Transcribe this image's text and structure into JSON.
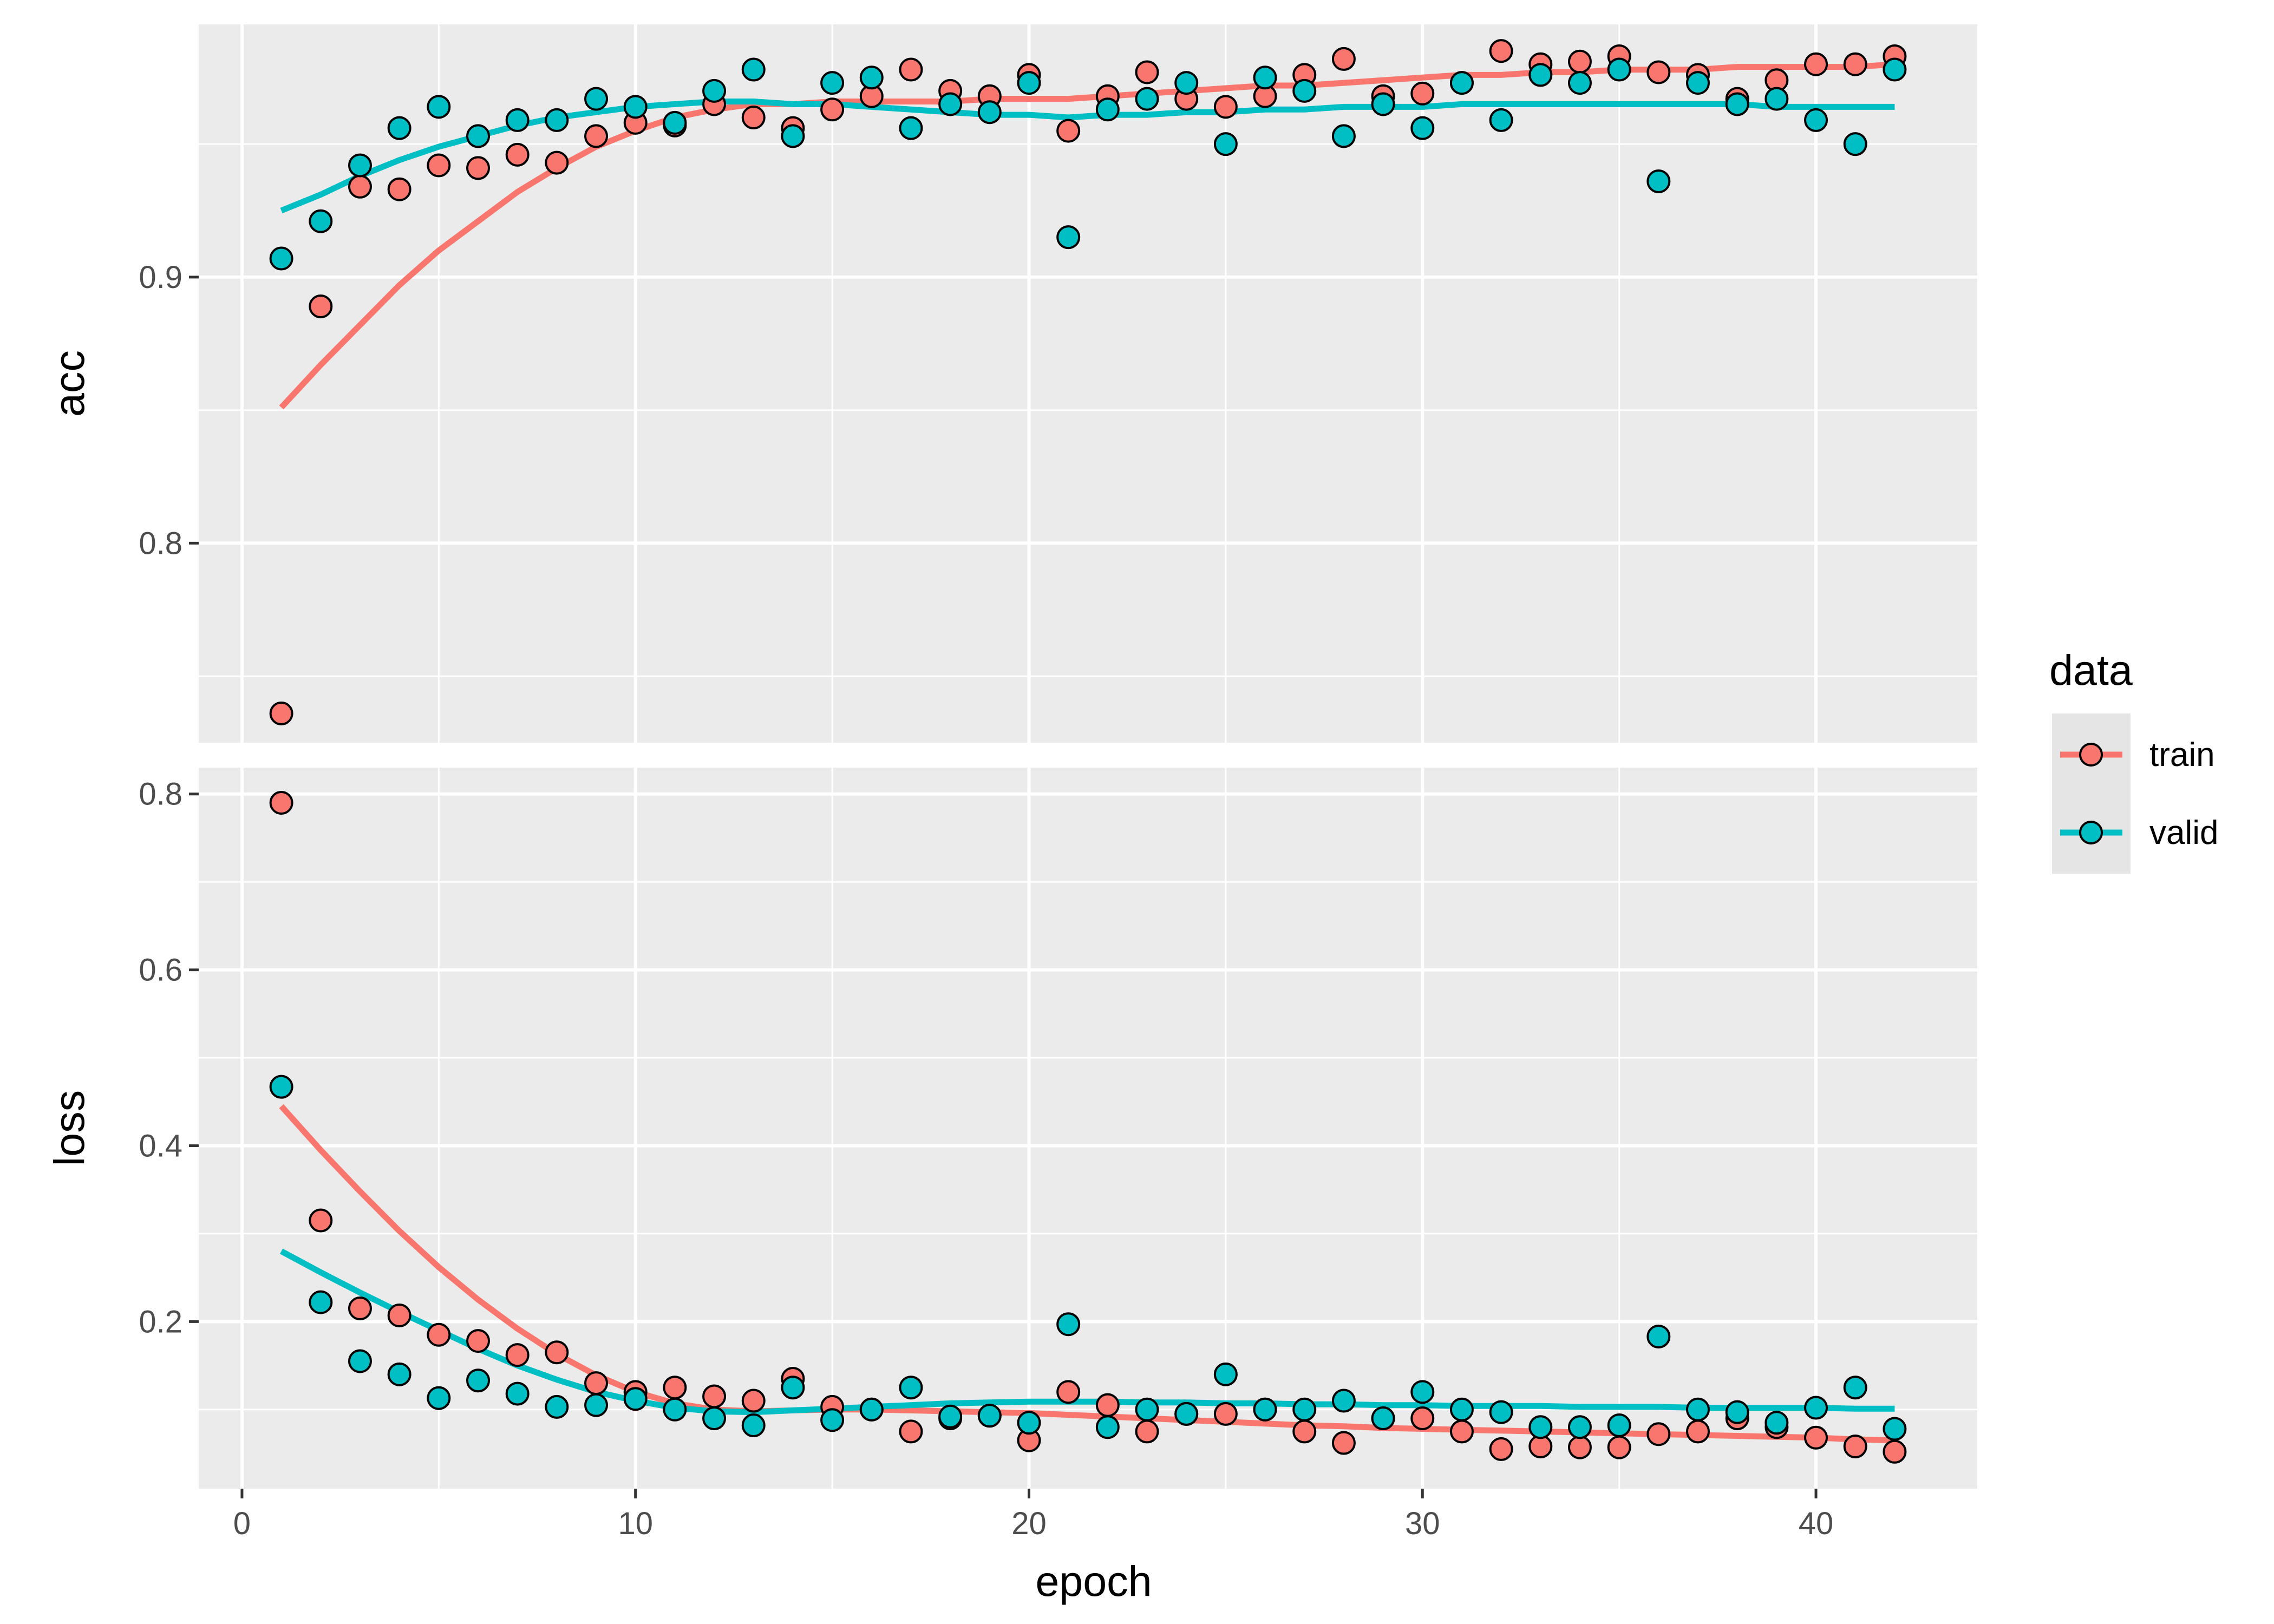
{
  "chart_data": {
    "type": "scatter",
    "xlabel": "epoch",
    "x_ticks": [
      0,
      10,
      20,
      30,
      40
    ],
    "xlim": [
      -1.1,
      44.1
    ],
    "grid": true,
    "legend": {
      "title": "data",
      "position": "right",
      "entries": [
        {
          "name": "train",
          "color": "#F8766D"
        },
        {
          "name": "valid",
          "color": "#00BFC4"
        }
      ]
    },
    "panels": [
      {
        "strip": "acc",
        "ylim": [
          0.725,
          0.995
        ],
        "y_ticks": [
          0.8,
          0.9
        ],
        "y_tick_labels": [
          "0.8",
          "0.9"
        ],
        "series": [
          {
            "name": "train",
            "x": [
              1,
              2,
              3,
              4,
              5,
              6,
              7,
              8,
              9,
              10,
              11,
              12,
              13,
              14,
              15,
              16,
              17,
              18,
              19,
              20,
              21,
              22,
              23,
              24,
              25,
              26,
              27,
              28,
              29,
              30,
              31,
              32,
              33,
              34,
              35,
              36,
              37,
              38,
              39,
              40,
              41,
              42
            ],
            "y": [
              0.736,
              0.889,
              0.934,
              0.933,
              0.942,
              0.941,
              0.946,
              0.943,
              0.953,
              0.958,
              0.957,
              0.965,
              0.96,
              0.956,
              0.963,
              0.968,
              0.978,
              0.97,
              0.968,
              0.976,
              0.955,
              0.968,
              0.977,
              0.967,
              0.964,
              0.968,
              0.976,
              0.982,
              0.968,
              0.969,
              0.973,
              0.985,
              0.98,
              0.981,
              0.983,
              0.977,
              0.976,
              0.967,
              0.974,
              0.98,
              0.98,
              0.983
            ],
            "smooth": [
              0.851,
              0.867,
              0.882,
              0.897,
              0.91,
              0.921,
              0.932,
              0.941,
              0.949,
              0.955,
              0.96,
              0.963,
              0.965,
              0.965,
              0.966,
              0.966,
              0.966,
              0.966,
              0.967,
              0.967,
              0.967,
              0.968,
              0.969,
              0.97,
              0.971,
              0.972,
              0.972,
              0.973,
              0.974,
              0.975,
              0.976,
              0.976,
              0.977,
              0.977,
              0.978,
              0.978,
              0.978,
              0.979,
              0.979,
              0.979,
              0.979,
              0.98
            ]
          },
          {
            "name": "valid",
            "x": [
              1,
              2,
              3,
              4,
              5,
              6,
              7,
              8,
              9,
              10,
              11,
              12,
              13,
              14,
              15,
              16,
              17,
              18,
              19,
              20,
              21,
              22,
              23,
              24,
              25,
              26,
              27,
              28,
              29,
              30,
              31,
              32,
              33,
              34,
              35,
              36,
              37,
              38,
              39,
              40,
              41,
              42
            ],
            "y": [
              0.907,
              0.921,
              0.942,
              0.956,
              0.964,
              0.953,
              0.959,
              0.959,
              0.967,
              0.964,
              0.958,
              0.97,
              0.978,
              0.953,
              0.973,
              0.975,
              0.956,
              0.965,
              0.962,
              0.973,
              0.915,
              0.963,
              0.967,
              0.973,
              0.95,
              0.975,
              0.97,
              0.953,
              0.965,
              0.956,
              0.973,
              0.959,
              0.976,
              0.973,
              0.978,
              0.936,
              0.973,
              0.965,
              0.967,
              0.959,
              0.95,
              0.978
            ],
            "smooth": [
              0.925,
              0.931,
              0.938,
              0.944,
              0.949,
              0.953,
              0.957,
              0.96,
              0.962,
              0.964,
              0.965,
              0.966,
              0.966,
              0.965,
              0.965,
              0.964,
              0.963,
              0.962,
              0.961,
              0.961,
              0.96,
              0.961,
              0.961,
              0.962,
              0.962,
              0.963,
              0.963,
              0.964,
              0.964,
              0.964,
              0.965,
              0.965,
              0.965,
              0.965,
              0.965,
              0.965,
              0.965,
              0.965,
              0.964,
              0.964,
              0.964,
              0.964
            ]
          }
        ]
      },
      {
        "strip": "loss",
        "ylim": [
          0.01,
          0.83
        ],
        "y_ticks": [
          0.2,
          0.4,
          0.6,
          0.8
        ],
        "y_tick_labels": [
          "0.2",
          "0.4",
          "0.6",
          "0.8"
        ],
        "series": [
          {
            "name": "train",
            "x": [
              1,
              2,
              3,
              4,
              5,
              6,
              7,
              8,
              9,
              10,
              11,
              12,
              13,
              14,
              15,
              16,
              17,
              18,
              19,
              20,
              21,
              22,
              23,
              24,
              25,
              26,
              27,
              28,
              29,
              30,
              31,
              32,
              33,
              34,
              35,
              36,
              37,
              38,
              39,
              40,
              41,
              42
            ],
            "y": [
              0.79,
              0.315,
              0.215,
              0.207,
              0.185,
              0.178,
              0.162,
              0.165,
              0.13,
              0.12,
              0.125,
              0.115,
              0.11,
              0.135,
              0.103,
              0.1,
              0.075,
              0.09,
              0.093,
              0.065,
              0.12,
              0.105,
              0.075,
              0.095,
              0.095,
              0.1,
              0.075,
              0.062,
              0.09,
              0.09,
              0.075,
              0.055,
              0.058,
              0.057,
              0.057,
              0.072,
              0.075,
              0.09,
              0.08,
              0.068,
              0.058,
              0.052
            ],
            "smooth": [
              0.445,
              0.395,
              0.348,
              0.303,
              0.262,
              0.225,
              0.192,
              0.163,
              0.139,
              0.12,
              0.107,
              0.1,
              0.098,
              0.099,
              0.1,
              0.1,
              0.099,
              0.098,
              0.097,
              0.096,
              0.094,
              0.092,
              0.09,
              0.088,
              0.086,
              0.084,
              0.082,
              0.081,
              0.079,
              0.078,
              0.077,
              0.076,
              0.075,
              0.074,
              0.073,
              0.072,
              0.071,
              0.07,
              0.069,
              0.068,
              0.066,
              0.065
            ]
          },
          {
            "name": "valid",
            "x": [
              1,
              2,
              3,
              4,
              5,
              6,
              7,
              8,
              9,
              10,
              11,
              12,
              13,
              14,
              15,
              16,
              17,
              18,
              19,
              20,
              21,
              22,
              23,
              24,
              25,
              26,
              27,
              28,
              29,
              30,
              31,
              32,
              33,
              34,
              35,
              36,
              37,
              38,
              39,
              40,
              41,
              42
            ],
            "y": [
              0.467,
              0.222,
              0.155,
              0.14,
              0.113,
              0.133,
              0.118,
              0.103,
              0.105,
              0.112,
              0.1,
              0.09,
              0.082,
              0.125,
              0.088,
              0.1,
              0.125,
              0.092,
              0.093,
              0.085,
              0.197,
              0.08,
              0.1,
              0.095,
              0.14,
              0.1,
              0.1,
              0.11,
              0.09,
              0.12,
              0.1,
              0.097,
              0.08,
              0.08,
              0.082,
              0.183,
              0.1,
              0.097,
              0.085,
              0.102,
              0.125,
              0.078
            ],
            "smooth": [
              0.28,
              0.256,
              0.233,
              0.211,
              0.19,
              0.169,
              0.15,
              0.134,
              0.12,
              0.11,
              0.102,
              0.098,
              0.097,
              0.099,
              0.101,
              0.103,
              0.105,
              0.107,
              0.108,
              0.109,
              0.109,
              0.109,
              0.108,
              0.108,
              0.107,
              0.107,
              0.106,
              0.106,
              0.105,
              0.105,
              0.104,
              0.104,
              0.104,
              0.103,
              0.103,
              0.103,
              0.102,
              0.102,
              0.102,
              0.102,
              0.101,
              0.101
            ]
          }
        ]
      }
    ]
  }
}
